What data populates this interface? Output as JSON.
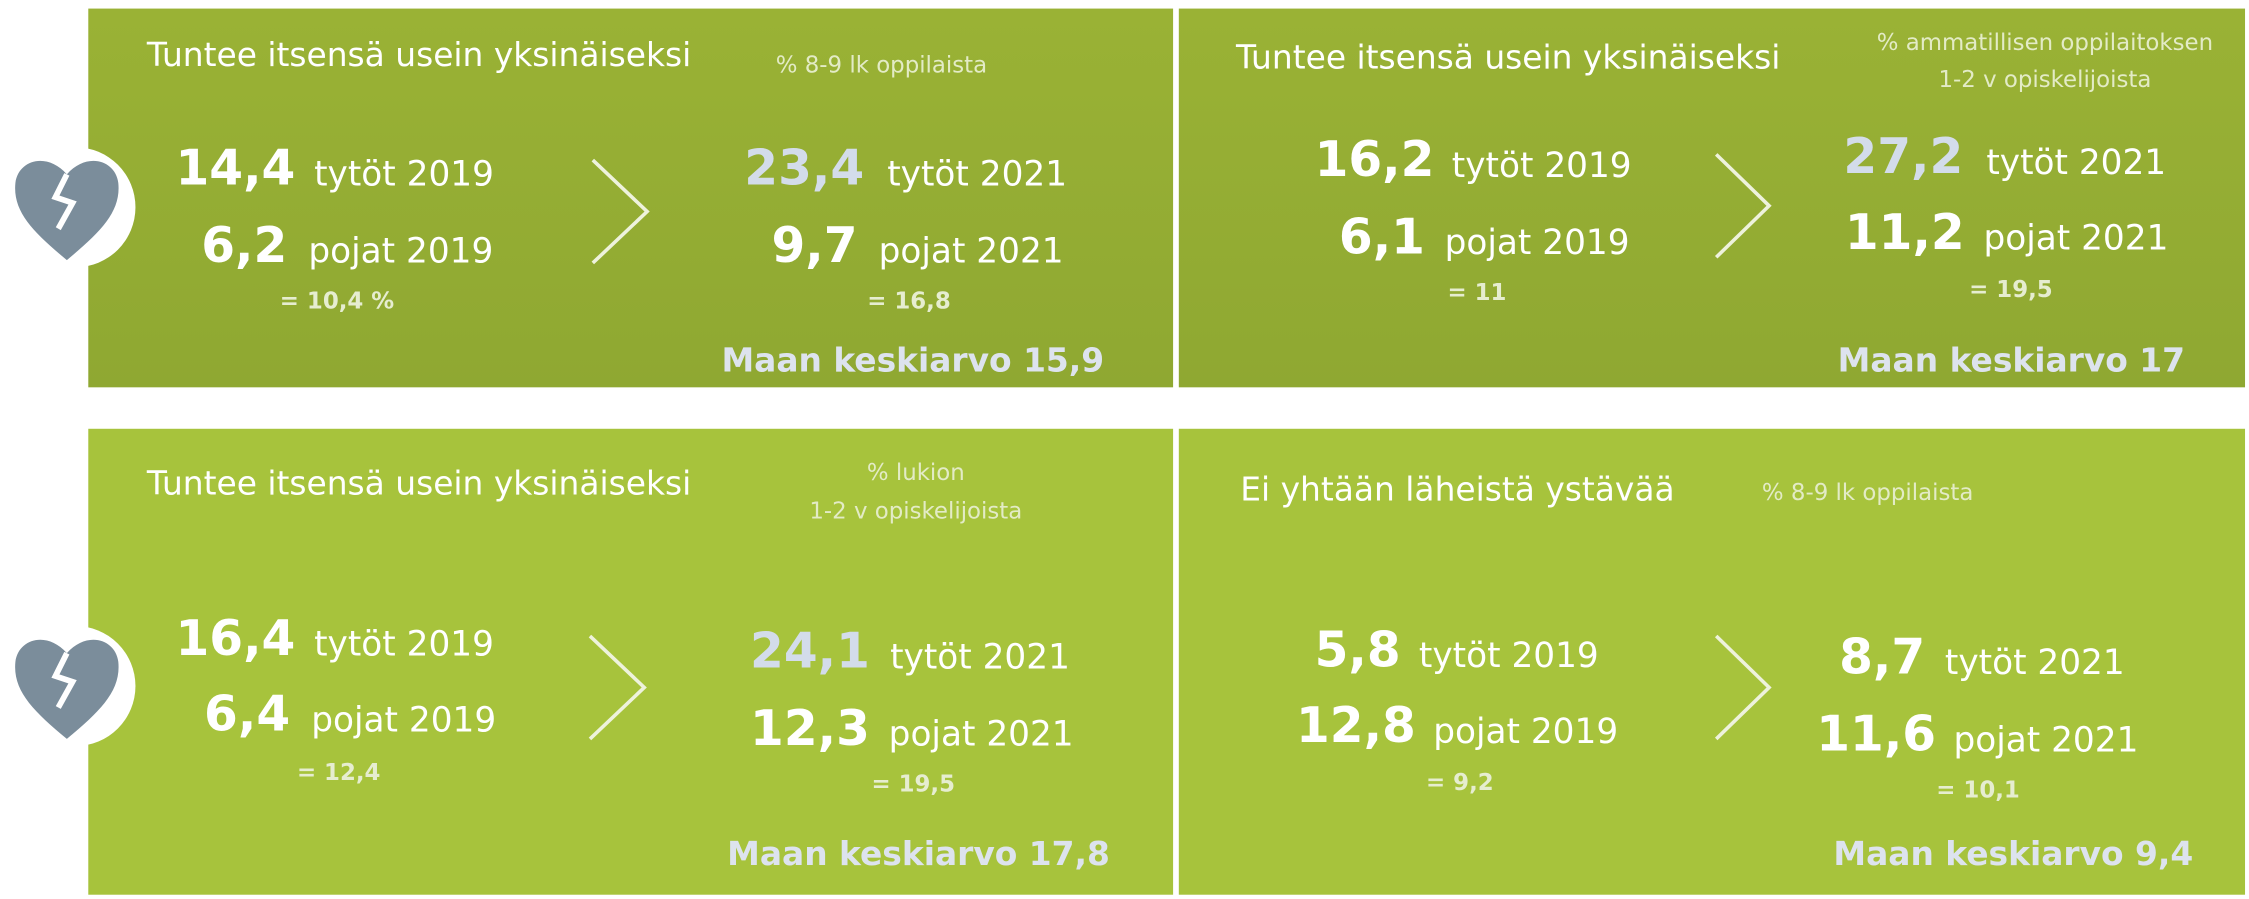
{
  "panels": [
    {
      "title": "Tuntee itsensä usein yksinäiseksi",
      "subtitle": [
        "% 8-9 lk oppilaista"
      ],
      "before": {
        "rows": [
          {
            "value": "14,4",
            "label": "tytöt 2019"
          },
          {
            "value": "6,2",
            "label": "pojat 2019"
          }
        ],
        "total": "= 10,4 %"
      },
      "after": {
        "rows": [
          {
            "value": "23,4",
            "label": "tytöt 2021",
            "color": "#d3dcea"
          },
          {
            "value": "9,7",
            "label": "pojat 2021"
          }
        ],
        "total": "= 16,8"
      },
      "average": "Maan keskiarvo 15,9"
    },
    {
      "title": "Tuntee itsensä usein yksinäiseksi",
      "subtitle": [
        "% ammatillisen oppilaitoksen",
        "1-2 v opiskelijoista"
      ],
      "before": {
        "rows": [
          {
            "value": "16,2",
            "label": "tytöt 2019"
          },
          {
            "value": "6,1",
            "label": "pojat 2019"
          }
        ],
        "total": "= 11"
      },
      "after": {
        "rows": [
          {
            "value": "27,2",
            "label": "tytöt 2021",
            "color": "#d3dcea"
          },
          {
            "value": "11,2",
            "label": "pojat 2021"
          }
        ],
        "total": "= 19,5"
      },
      "average": "Maan keskiarvo 17"
    },
    {
      "title": "Tuntee itsensä usein yksinäiseksi",
      "subtitle": [
        "% lukion",
        "1-2 v opiskelijoista"
      ],
      "before": {
        "rows": [
          {
            "value": "16,4",
            "label": "tytöt 2019"
          },
          {
            "value": "6,4",
            "label": "pojat 2019"
          }
        ],
        "total": "= 12,4"
      },
      "after": {
        "rows": [
          {
            "value": "24,1",
            "label": "tytöt 2021",
            "color": "#d3dcea"
          },
          {
            "value": "12,3",
            "label": "pojat 2021"
          }
        ],
        "total": "= 19,5"
      },
      "average": "Maan keskiarvo 17,8"
    },
    {
      "title": "Ei yhtään läheistä ystävää",
      "subtitle": [
        "% 8-9 lk oppilaista"
      ],
      "before": {
        "rows": [
          {
            "value": "5,8",
            "label": "tytöt 2019"
          },
          {
            "value": "12,8",
            "label": "pojat 2019"
          }
        ],
        "total": "= 9,2"
      },
      "after": {
        "rows": [
          {
            "value": "8,7",
            "label": "tytöt 2021"
          },
          {
            "value": "11,6",
            "label": "pojat 2021"
          }
        ],
        "total": "= 10,1"
      },
      "average": "Maan keskiarvo 9,4"
    }
  ]
}
